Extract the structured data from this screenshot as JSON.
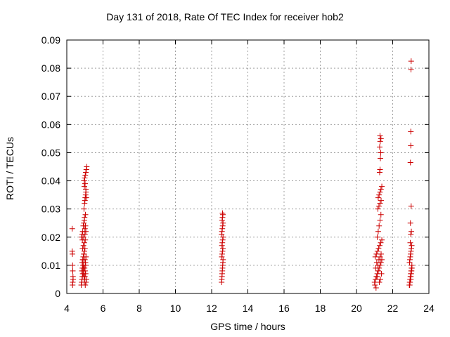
{
  "chart_data": {
    "type": "scatter",
    "title": "Day 131 of 2018, Rate Of TEC Index for receiver hob2",
    "xlabel": "GPS time / hours",
    "ylabel": "ROTI / TECUs",
    "xlim": [
      4,
      24
    ],
    "ylim": [
      0,
      0.09
    ],
    "xticks": [
      "4",
      "6",
      "8",
      "10",
      "12",
      "14",
      "16",
      "18",
      "20",
      "22",
      "24"
    ],
    "yticks": [
      "0",
      "0.01",
      "0.02",
      "0.03",
      "0.04",
      "0.05",
      "0.06",
      "0.07",
      "0.08",
      "0.09"
    ],
    "grid": true,
    "marker": "+",
    "color": "#cc0000",
    "series": [
      {
        "x": [
          4.3,
          4.3,
          4.31,
          4.32,
          4.33,
          4.34,
          4.35,
          4.33,
          4.32,
          4.8,
          4.82,
          4.84,
          4.86,
          4.88,
          4.9,
          4.92,
          4.94,
          4.96,
          4.98,
          5.0,
          5.02,
          5.04,
          5.06,
          5.08,
          4.85,
          4.88,
          4.91,
          4.94,
          4.97,
          5.0,
          5.03,
          5.06,
          4.87,
          4.92,
          4.97,
          5.02,
          4.83,
          4.86,
          4.89,
          4.92,
          4.95,
          4.98,
          5.01,
          5.04,
          4.9,
          4.95,
          5.0,
          4.82,
          4.85,
          4.88,
          4.91,
          4.94,
          4.97,
          5.0,
          5.03,
          4.86,
          4.93,
          5.0,
          5.05,
          4.95,
          4.98,
          5.0,
          5.02,
          5.04,
          5.06,
          4.97,
          5.01,
          5.05,
          5.08,
          4.96,
          4.99,
          5.02,
          5.05,
          5.08,
          5.1,
          4.98,
          5.03,
          12.55,
          12.56,
          12.57,
          12.58,
          12.59,
          12.6,
          12.61,
          12.62,
          12.63,
          12.56,
          12.58,
          12.6,
          12.62,
          12.57,
          12.59,
          12.61,
          12.63,
          12.55,
          12.57,
          12.59,
          12.61,
          12.63,
          12.58,
          12.6,
          12.62,
          12.6,
          21.0,
          21.05,
          21.1,
          21.15,
          21.2,
          21.25,
          21.3,
          21.35,
          21.4,
          21.02,
          21.08,
          21.14,
          21.2,
          21.26,
          21.32,
          21.38,
          21.04,
          21.1,
          21.16,
          21.22,
          21.28,
          21.34,
          21.4,
          21.06,
          21.12,
          21.18,
          21.24,
          21.3,
          21.36,
          21.15,
          21.2,
          21.25,
          21.3,
          21.35,
          21.18,
          21.24,
          21.3,
          21.36,
          21.2,
          21.25,
          21.3,
          21.35,
          21.4,
          21.28,
          21.3,
          21.32,
          21.34,
          21.28,
          21.31,
          21.35,
          21.3,
          22.92,
          22.94,
          22.96,
          22.98,
          23.0,
          23.02,
          23.04,
          23.06,
          22.93,
          22.95,
          22.97,
          22.99,
          23.01,
          23.03,
          23.05,
          22.94,
          22.98,
          23.02,
          23.06,
          22.96,
          23.0,
          23.04,
          22.97,
          23.0,
          23.03,
          22.98,
          23.02,
          22.98,
          23.0,
          23.0,
          23.01,
          23.02,
          23.0
        ],
        "y": [
          0.023,
          0.015,
          0.014,
          0.01,
          0.008,
          0.006,
          0.005,
          0.004,
          0.003,
          0.003,
          0.004,
          0.005,
          0.006,
          0.007,
          0.008,
          0.009,
          0.01,
          0.004,
          0.005,
          0.006,
          0.003,
          0.007,
          0.004,
          0.005,
          0.011,
          0.012,
          0.013,
          0.014,
          0.015,
          0.012,
          0.011,
          0.013,
          0.016,
          0.017,
          0.018,
          0.019,
          0.008,
          0.009,
          0.01,
          0.007,
          0.006,
          0.009,
          0.008,
          0.01,
          0.012,
          0.014,
          0.016,
          0.02,
          0.021,
          0.022,
          0.024,
          0.025,
          0.026,
          0.023,
          0.024,
          0.019,
          0.02,
          0.021,
          0.022,
          0.03,
          0.032,
          0.033,
          0.034,
          0.035,
          0.036,
          0.038,
          0.039,
          0.037,
          0.034,
          0.04,
          0.041,
          0.042,
          0.043,
          0.044,
          0.045,
          0.027,
          0.028,
          0.004,
          0.005,
          0.006,
          0.007,
          0.008,
          0.009,
          0.01,
          0.011,
          0.012,
          0.013,
          0.014,
          0.015,
          0.016,
          0.017,
          0.018,
          0.019,
          0.02,
          0.021,
          0.022,
          0.023,
          0.024,
          0.025,
          0.026,
          0.027,
          0.028,
          0.0285,
          0.004,
          0.005,
          0.006,
          0.007,
          0.008,
          0.009,
          0.01,
          0.011,
          0.012,
          0.003,
          0.002,
          0.006,
          0.008,
          0.004,
          0.005,
          0.007,
          0.013,
          0.014,
          0.015,
          0.016,
          0.017,
          0.018,
          0.019,
          0.009,
          0.011,
          0.01,
          0.012,
          0.013,
          0.014,
          0.02,
          0.022,
          0.024,
          0.026,
          0.028,
          0.03,
          0.031,
          0.032,
          0.033,
          0.034,
          0.035,
          0.036,
          0.037,
          0.038,
          0.043,
          0.044,
          0.048,
          0.05,
          0.052,
          0.054,
          0.055,
          0.056,
          0.003,
          0.004,
          0.005,
          0.006,
          0.007,
          0.008,
          0.009,
          0.01,
          0.011,
          0.012,
          0.013,
          0.014,
          0.015,
          0.016,
          0.017,
          0.003,
          0.005,
          0.007,
          0.009,
          0.004,
          0.006,
          0.008,
          0.018,
          0.021,
          0.022,
          0.025,
          0.031,
          0.0465,
          0.0525,
          0.0575,
          0.0795,
          0.0825,
          0.005
        ]
      }
    ]
  }
}
